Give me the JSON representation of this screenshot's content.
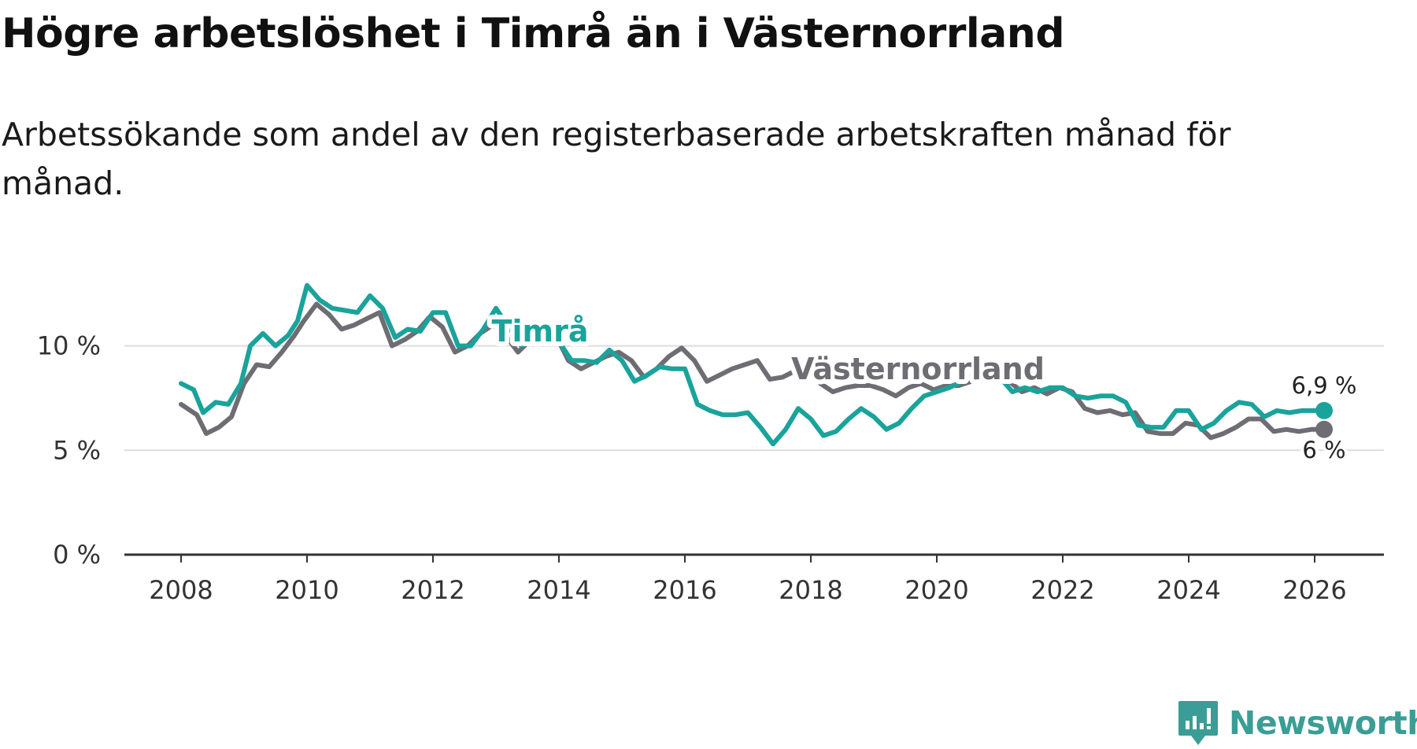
{
  "title": "Högre arbetslöshet i Timrå än i Västernorrland",
  "subtitle": "Arbetssökande som andel av den registerbaserade arbetskraften månad för månad.",
  "brand": {
    "name": "Newsworthy",
    "logo_icon": "newsworthy-logo-icon",
    "color": "#3a9d96"
  },
  "chart_data": {
    "type": "line",
    "title": "Högre arbetslöshet i Timrå än i Västernorrland",
    "subtitle": "Arbetssökande som andel av den registerbaserade arbetskraften månad för månad.",
    "xlabel": "",
    "ylabel": "",
    "xlim": [
      2007.1,
      2027.1
    ],
    "ylim": [
      0,
      13
    ],
    "x_ticks": [
      {
        "value": 2008,
        "label": "2008"
      },
      {
        "value": 2010,
        "label": "2010"
      },
      {
        "value": 2012,
        "label": "2012"
      },
      {
        "value": 2014,
        "label": "2014"
      },
      {
        "value": 2016,
        "label": "2016"
      },
      {
        "value": 2018,
        "label": "2018"
      },
      {
        "value": 2020,
        "label": "2020"
      },
      {
        "value": 2022,
        "label": "2022"
      },
      {
        "value": 2024,
        "label": "2024"
      },
      {
        "value": 2026,
        "label": "2026"
      }
    ],
    "y_ticks": [
      {
        "value": 0,
        "label": "0 %"
      },
      {
        "value": 5,
        "label": "5 %"
      },
      {
        "value": 10,
        "label": "10 %"
      }
    ],
    "grid": "horizontal",
    "series": [
      {
        "name": "Västernorrland",
        "label": "Västernorrland",
        "color": "#6e6d73",
        "end_label": "6 %",
        "x": [
          2008.0,
          2008.25,
          2008.4,
          2008.6,
          2008.8,
          2009.0,
          2009.2,
          2009.4,
          2009.6,
          2009.8,
          2009.95,
          2010.15,
          2010.35,
          2010.55,
          2010.75,
          2010.95,
          2011.15,
          2011.35,
          2011.55,
          2011.75,
          2011.95,
          2012.15,
          2012.35,
          2012.55,
          2012.75,
          2012.95,
          2013.15,
          2013.35,
          2013.55,
          2013.75,
          2013.95,
          2014.15,
          2014.35,
          2014.55,
          2014.75,
          2014.95,
          2015.15,
          2015.35,
          2015.55,
          2015.75,
          2015.95,
          2016.15,
          2016.35,
          2016.55,
          2016.75,
          2016.95,
          2017.15,
          2017.35,
          2017.55,
          2017.75,
          2017.95,
          2018.15,
          2018.35,
          2018.55,
          2018.75,
          2018.95,
          2019.15,
          2019.35,
          2019.55,
          2019.75,
          2019.95,
          2020.15,
          2020.35,
          2020.55,
          2020.75,
          2020.95,
          2021.15,
          2021.35,
          2021.55,
          2021.75,
          2021.95,
          2022.15,
          2022.35,
          2022.55,
          2022.75,
          2022.95,
          2023.15,
          2023.35,
          2023.55,
          2023.75,
          2023.95,
          2024.15,
          2024.35,
          2024.55,
          2024.75,
          2024.95,
          2025.15,
          2025.35,
          2025.55,
          2025.75,
          2025.95,
          2026.15
        ],
        "y": [
          7.2,
          6.7,
          5.8,
          6.1,
          6.6,
          8.2,
          9.1,
          9.0,
          9.7,
          10.5,
          11.2,
          12.0,
          11.5,
          10.8,
          11.0,
          11.3,
          11.6,
          10.0,
          10.3,
          10.7,
          11.4,
          10.9,
          9.7,
          10.0,
          10.6,
          11.0,
          10.5,
          9.7,
          10.3,
          10.8,
          10.5,
          9.3,
          8.9,
          9.2,
          9.5,
          9.7,
          9.3,
          8.5,
          8.9,
          9.5,
          9.9,
          9.3,
          8.3,
          8.6,
          8.9,
          9.1,
          9.3,
          8.4,
          8.5,
          8.8,
          9.1,
          8.2,
          7.8,
          8.0,
          8.1,
          8.1,
          7.9,
          7.6,
          8.0,
          8.2,
          7.9,
          8.1,
          8.1,
          8.3,
          8.6,
          8.6,
          8.3,
          7.8,
          8.0,
          7.7,
          8.0,
          7.8,
          7.0,
          6.8,
          6.9,
          6.7,
          6.8,
          5.9,
          5.8,
          5.8,
          6.3,
          6.2,
          5.6,
          5.8,
          6.1,
          6.5,
          6.5,
          5.9,
          6.0,
          5.9,
          6.0,
          6.0
        ]
      },
      {
        "name": "Timrå",
        "label": "Timrå",
        "color": "#1aa39b",
        "end_label": "6,9 %",
        "x": [
          2008.0,
          2008.2,
          2008.35,
          2008.55,
          2008.75,
          2008.95,
          2009.1,
          2009.3,
          2009.5,
          2009.7,
          2009.85,
          2010.0,
          2010.2,
          2010.4,
          2010.6,
          2010.8,
          2011.0,
          2011.2,
          2011.4,
          2011.6,
          2011.8,
          2012.0,
          2012.2,
          2012.4,
          2012.6,
          2012.8,
          2013.0,
          2013.2,
          2013.4,
          2013.6,
          2013.8,
          2014.0,
          2014.2,
          2014.4,
          2014.6,
          2014.8,
          2015.0,
          2015.2,
          2015.4,
          2015.6,
          2015.8,
          2016.0,
          2016.2,
          2016.4,
          2016.6,
          2016.8,
          2017.0,
          2017.2,
          2017.4,
          2017.6,
          2017.8,
          2018.0,
          2018.2,
          2018.4,
          2018.6,
          2018.8,
          2019.0,
          2019.2,
          2019.4,
          2019.6,
          2019.8,
          2020.0,
          2020.2,
          2020.4,
          2020.6,
          2020.8,
          2021.0,
          2021.2,
          2021.4,
          2021.6,
          2021.8,
          2022.0,
          2022.2,
          2022.4,
          2022.6,
          2022.8,
          2023.0,
          2023.2,
          2023.4,
          2023.6,
          2023.8,
          2024.0,
          2024.2,
          2024.4,
          2024.6,
          2024.8,
          2025.0,
          2025.2,
          2025.4,
          2025.6,
          2025.8,
          2026.0,
          2026.15
        ],
        "y": [
          8.2,
          7.9,
          6.8,
          7.3,
          7.2,
          8.2,
          10.0,
          10.6,
          10.0,
          10.5,
          11.2,
          12.9,
          12.2,
          11.8,
          11.7,
          11.6,
          12.4,
          11.8,
          10.4,
          10.8,
          10.7,
          11.6,
          11.6,
          10.0,
          10.0,
          10.8,
          11.8,
          10.9,
          10.0,
          10.4,
          10.6,
          10.2,
          9.3,
          9.3,
          9.2,
          9.8,
          9.3,
          8.3,
          8.6,
          9.0,
          8.9,
          8.9,
          7.2,
          6.9,
          6.7,
          6.7,
          6.8,
          6.1,
          5.3,
          6.0,
          7.0,
          6.5,
          5.7,
          5.9,
          6.5,
          7.0,
          6.6,
          6.0,
          6.3,
          7.0,
          7.6,
          7.8,
          8.0,
          8.3,
          8.7,
          8.8,
          8.5,
          7.8,
          8.0,
          7.8,
          8.0,
          8.0,
          7.6,
          7.5,
          7.6,
          7.6,
          7.3,
          6.2,
          6.1,
          6.1,
          6.9,
          6.9,
          6.0,
          6.3,
          6.9,
          7.3,
          7.2,
          6.6,
          6.9,
          6.8,
          6.9,
          6.9,
          6.9
        ]
      }
    ],
    "annotations": [
      {
        "series": "Timrå",
        "text": "Timrå",
        "x": 2013.7,
        "y": 10.7
      },
      {
        "series": "Västernorrland",
        "text": "Västernorrland",
        "x": 2019.7,
        "y": 8.9
      }
    ],
    "legend": "none"
  }
}
